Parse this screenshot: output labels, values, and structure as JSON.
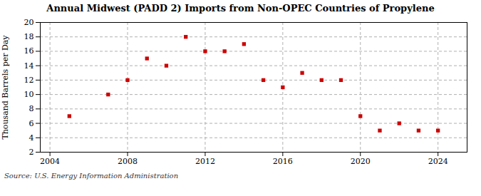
{
  "chart_data": {
    "type": "scatter",
    "title": "Annual Midwest (PADD 2) Imports from Non-OPEC Countries of Propylene",
    "ylabel": "Thousand Barrels per Day",
    "annotations": [
      "Source: U.S. Energy Information Administration"
    ],
    "x": [
      2005,
      2007,
      2008,
      2009,
      2010,
      2011,
      2012,
      2013,
      2014,
      2015,
      2016,
      2017,
      2018,
      2019,
      2020,
      2021,
      2022,
      2023,
      2024
    ],
    "values": [
      7,
      10,
      12,
      15,
      14,
      18,
      16,
      16,
      17,
      12,
      11,
      13,
      12,
      12,
      7,
      5,
      6,
      5,
      5
    ],
    "color": "#cc0000",
    "marker": "square",
    "xlim": [
      2003.5,
      2025.5
    ],
    "xticks": [
      2004,
      2008,
      2012,
      2016,
      2020,
      2024
    ],
    "ylim": [
      2,
      20
    ],
    "yticks": [
      2,
      4,
      6,
      8,
      10,
      12,
      14,
      16,
      18,
      20
    ],
    "grid": true
  }
}
